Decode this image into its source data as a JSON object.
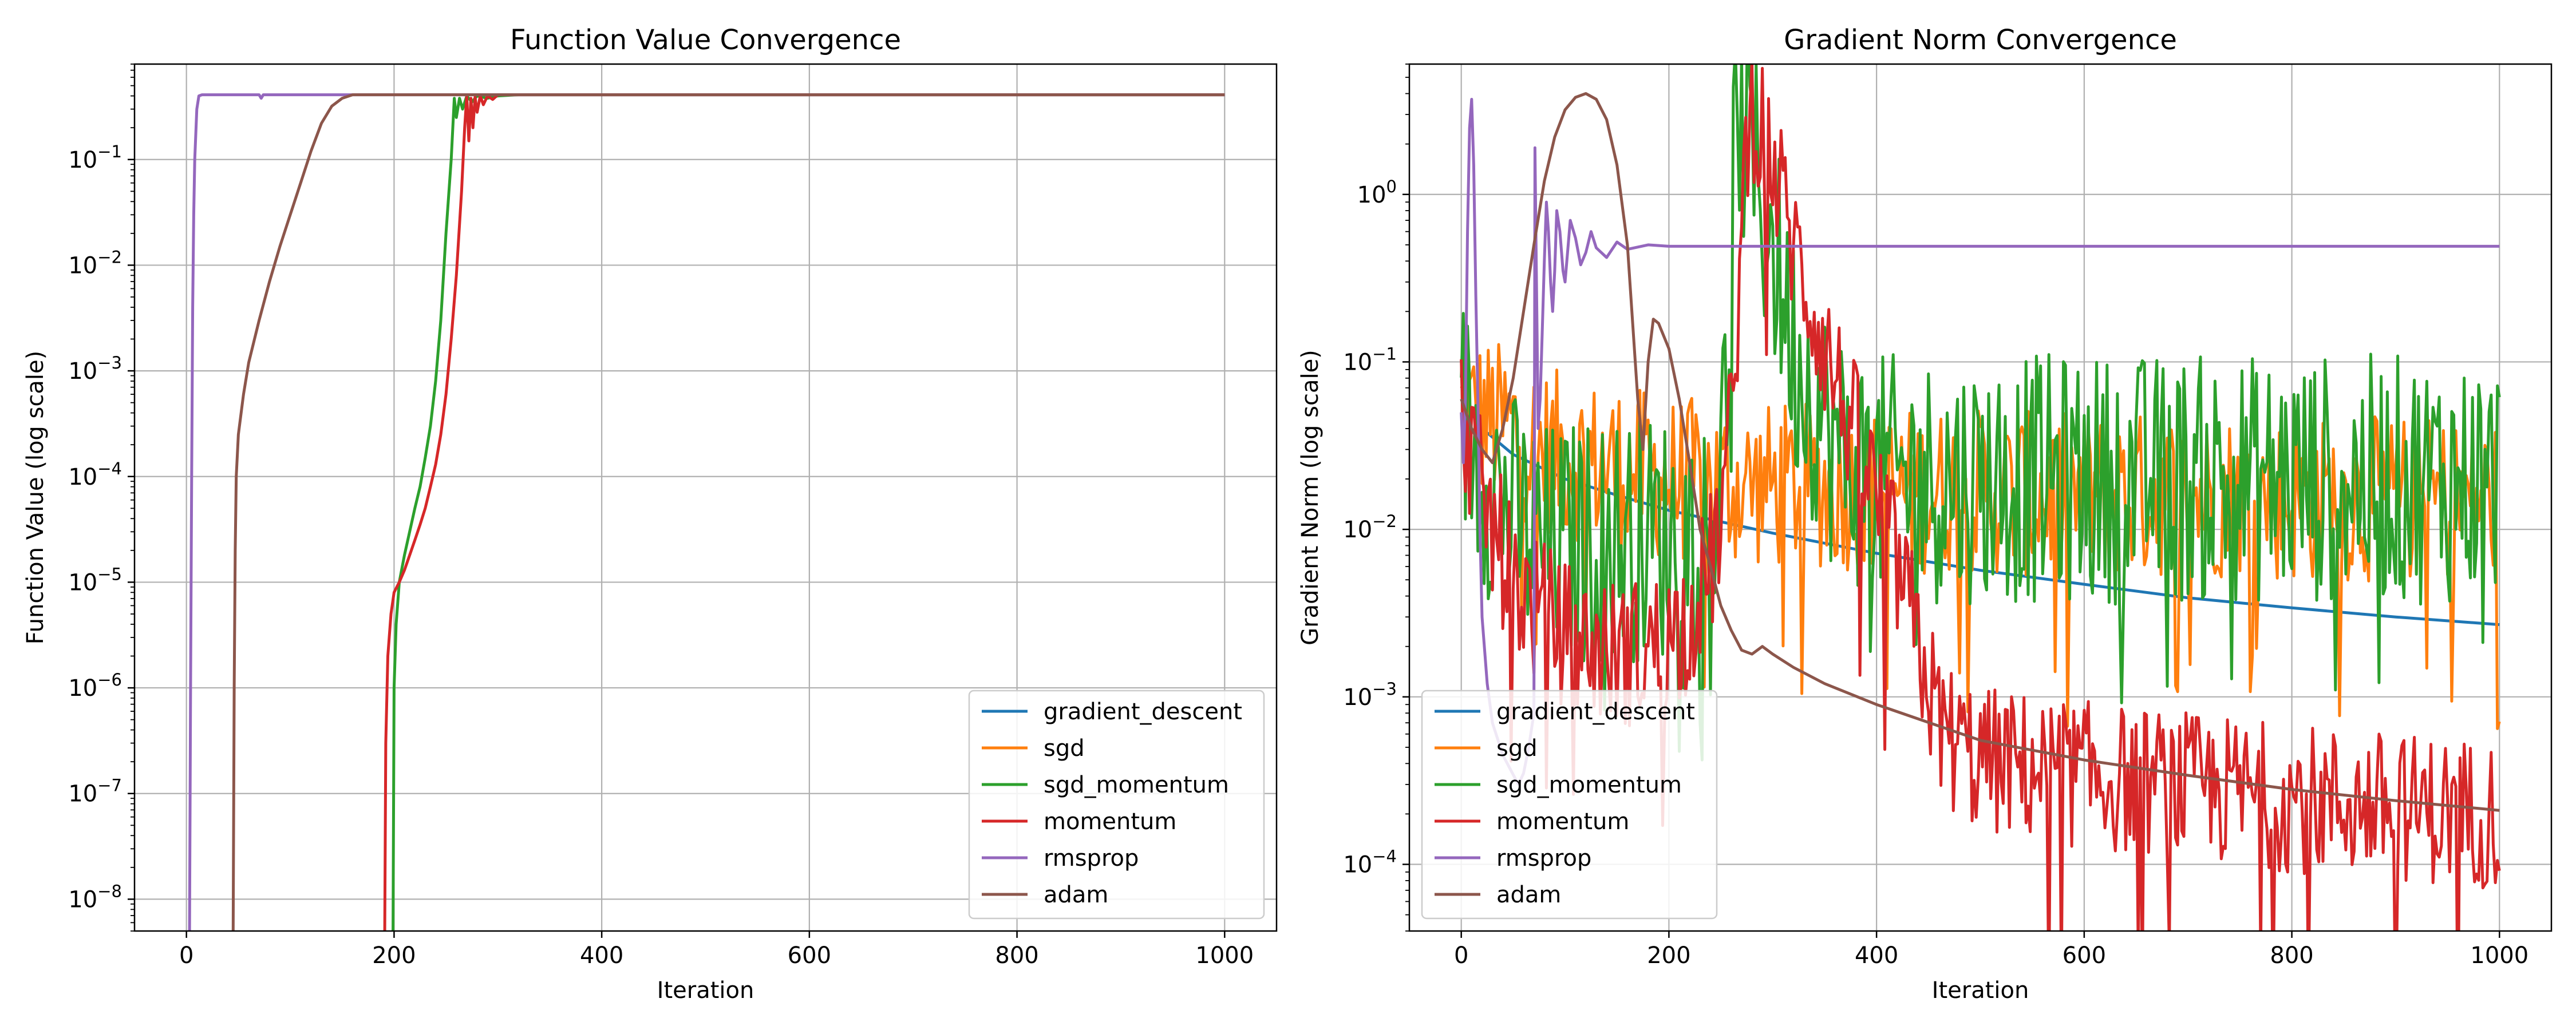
{
  "chart_data": [
    {
      "type": "line",
      "title": "Function Value Convergence",
      "xlabel": "Iteration",
      "ylabel": "Function Value (log scale)",
      "yscale": "log",
      "xlim": [
        -50,
        1050
      ],
      "ylim": [
        5e-09,
        0.8
      ],
      "xticks": [
        0,
        200,
        400,
        600,
        800,
        1000
      ],
      "xtick_labels": [
        "0",
        "200",
        "400",
        "600",
        "800",
        "1000"
      ],
      "yticks": [
        1e-08,
        1e-07,
        1e-06,
        1e-05,
        0.0001,
        0.001,
        0.01,
        0.1
      ],
      "ytick_labels": [
        {
          "base": "10",
          "exp": "−8"
        },
        {
          "base": "10",
          "exp": "−7"
        },
        {
          "base": "10",
          "exp": "−6"
        },
        {
          "base": "10",
          "exp": "−5"
        },
        {
          "base": "10",
          "exp": "−4"
        },
        {
          "base": "10",
          "exp": "−3"
        },
        {
          "base": "10",
          "exp": "−2"
        },
        {
          "base": "10",
          "exp": "−1"
        }
      ],
      "grid": true,
      "legend_position": "lower-right",
      "series": [
        {
          "name": "gradient_descent",
          "color": "#1f77b4",
          "x": [],
          "y": []
        },
        {
          "name": "sgd",
          "color": "#ff7f0e",
          "x": [],
          "y": []
        },
        {
          "name": "sgd_momentum",
          "color": "#2ca02c",
          "x": [
            199,
            200,
            202,
            205,
            210,
            215,
            220,
            225,
            230,
            235,
            240,
            245,
            250,
            255,
            258,
            260,
            263,
            266,
            270,
            275,
            280,
            290,
            300,
            320,
            1000
          ],
          "y": [
            5e-09,
            1e-06,
            4e-06,
            1e-05,
            1.8e-05,
            3e-05,
            5e-05,
            8e-05,
            0.00015,
            0.0003,
            0.0008,
            0.003,
            0.02,
            0.1,
            0.38,
            0.25,
            0.38,
            0.3,
            0.4,
            0.35,
            0.4,
            0.38,
            0.4,
            0.41,
            0.41
          ]
        },
        {
          "name": "momentum",
          "color": "#d62728",
          "x": [
            191,
            192,
            194,
            197,
            200,
            205,
            210,
            215,
            220,
            225,
            230,
            235,
            240,
            245,
            250,
            255,
            260,
            265,
            268,
            270,
            272,
            274,
            276,
            278,
            280,
            283,
            286,
            290,
            295,
            300,
            310,
            1000
          ],
          "y": [
            5e-09,
            3e-07,
            2e-06,
            5e-06,
            8e-06,
            1e-05,
            1.3e-05,
            1.8e-05,
            2.5e-05,
            3.5e-05,
            5e-05,
            8e-05,
            0.00013,
            0.00025,
            0.0006,
            0.002,
            0.008,
            0.05,
            0.2,
            0.4,
            0.15,
            0.38,
            0.2,
            0.39,
            0.28,
            0.4,
            0.33,
            0.4,
            0.37,
            0.41,
            0.41,
            0.41
          ]
        },
        {
          "name": "rmsprop",
          "color": "#9467bd",
          "x": [
            3,
            4,
            5,
            6,
            7,
            8,
            10,
            12,
            15,
            20,
            70,
            72,
            74,
            100,
            150,
            1000
          ],
          "y": [
            5e-09,
            1e-06,
            0.0001,
            0.004,
            0.03,
            0.1,
            0.3,
            0.4,
            0.41,
            0.41,
            0.41,
            0.38,
            0.41,
            0.41,
            0.41,
            0.41
          ]
        },
        {
          "name": "adam",
          "color": "#8c564b",
          "x": [
            45,
            46,
            47,
            48,
            50,
            55,
            60,
            70,
            80,
            90,
            100,
            110,
            120,
            130,
            140,
            150,
            160,
            1000
          ],
          "y": [
            5e-09,
            1e-06,
            2e-05,
            0.0001,
            0.00025,
            0.0006,
            0.0012,
            0.003,
            0.007,
            0.015,
            0.03,
            0.06,
            0.12,
            0.22,
            0.32,
            0.38,
            0.41,
            0.41
          ]
        }
      ]
    },
    {
      "type": "line",
      "title": "Gradient Norm Convergence",
      "xlabel": "Iteration",
      "ylabel": "Gradient Norm (log scale)",
      "yscale": "log",
      "xlim": [
        -50,
        1050
      ],
      "ylim": [
        4e-05,
        6
      ],
      "xticks": [
        0,
        200,
        400,
        600,
        800,
        1000
      ],
      "xtick_labels": [
        "0",
        "200",
        "400",
        "600",
        "800",
        "1000"
      ],
      "yticks": [
        0.0001,
        0.001,
        0.01,
        0.1,
        1
      ],
      "ytick_labels": [
        {
          "base": "10",
          "exp": "−4"
        },
        {
          "base": "10",
          "exp": "−3"
        },
        {
          "base": "10",
          "exp": "−2"
        },
        {
          "base": "10",
          "exp": "−1"
        },
        {
          "base": "10",
          "exp": "0"
        }
      ],
      "grid": true,
      "legend_position": "lower-left",
      "series": [
        {
          "name": "gradient_descent",
          "color": "#1f77b4",
          "x": [
            0,
            20,
            50,
            100,
            150,
            200,
            300,
            400,
            500,
            600,
            700,
            800,
            900,
            1000
          ],
          "y": [
            0.06,
            0.04,
            0.028,
            0.02,
            0.016,
            0.013,
            0.0095,
            0.0072,
            0.0057,
            0.0047,
            0.0039,
            0.0034,
            0.003,
            0.0027
          ]
        },
        {
          "name": "sgd",
          "color": "#ff7f0e",
          "x": [
            0,
            25,
            50,
            75,
            100,
            125,
            150,
            175,
            200,
            250,
            300,
            350,
            400,
            450,
            500,
            550,
            600,
            650,
            700,
            750,
            800,
            850,
            900,
            950,
            1000
          ],
          "y": [
            0.05,
            0.045,
            0.04,
            0.03,
            0.028,
            0.025,
            0.024,
            0.022,
            0.02,
            0.019,
            0.018,
            0.018,
            0.017,
            0.017,
            0.017,
            0.016,
            0.016,
            0.016,
            0.016,
            0.016,
            0.015,
            0.015,
            0.015,
            0.015,
            0.015
          ],
          "noise_amplitude": 0.5
        },
        {
          "name": "sgd_momentum",
          "color": "#2ca02c",
          "x": [
            0,
            20,
            40,
            60,
            80,
            100,
            150,
            200,
            240,
            255,
            262,
            266,
            270,
            275,
            280,
            285,
            290,
            300,
            310,
            320,
            340,
            360,
            400,
            450,
            500,
            600,
            700,
            800,
            900,
            1000
          ],
          "y": [
            0.05,
            0.025,
            0.015,
            0.01,
            0.008,
            0.008,
            0.009,
            0.009,
            0.01,
            0.05,
            1.0,
            3.5,
            2.0,
            3.0,
            1.5,
            1.2,
            0.8,
            0.5,
            0.25,
            0.12,
            0.06,
            0.03,
            0.02,
            0.02,
            0.02,
            0.02,
            0.02,
            0.02,
            0.02,
            0.02
          ],
          "noise_amplitude": 0.75
        },
        {
          "name": "momentum",
          "color": "#d62728",
          "x": [
            0,
            10,
            20,
            40,
            60,
            80,
            100,
            120,
            150,
            180,
            200,
            220,
            240,
            250,
            260,
            265,
            270,
            275,
            280,
            285,
            290,
            300,
            320,
            340,
            360,
            380,
            400,
            420,
            440,
            460,
            480,
            500,
            600,
            700,
            800,
            900,
            1000
          ],
          "y": [
            0.05,
            0.03,
            0.015,
            0.007,
            0.004,
            0.003,
            0.0024,
            0.002,
            0.0018,
            0.0019,
            0.0022,
            0.003,
            0.006,
            0.012,
            0.04,
            0.15,
            0.6,
            2.0,
            3.5,
            3.0,
            2.5,
            1.5,
            0.5,
            0.2,
            0.08,
            0.035,
            0.015,
            0.006,
            0.002,
            0.0007,
            0.0005,
            0.00042,
            0.00034,
            0.00029,
            0.00025,
            0.00022,
            0.0002
          ],
          "noise_amplitude": 0.45
        },
        {
          "name": "rmsprop",
          "color": "#9467bd",
          "x": [
            0,
            2,
            4,
            6,
            8,
            10,
            12,
            14,
            16,
            18,
            20,
            25,
            30,
            40,
            55,
            60,
            65,
            70,
            71,
            72,
            73,
            74,
            76,
            78,
            80,
            82,
            84,
            86,
            88,
            90,
            92,
            95,
            98,
            100,
            105,
            110,
            115,
            120,
            125,
            130,
            140,
            150,
            160,
            180,
            200,
            300,
            400,
            500,
            600,
            700,
            800,
            900,
            1000
          ],
          "y": [
            0.05,
            0.025,
            0.06,
            0.6,
            2.5,
            3.7,
            1.5,
            0.25,
            0.06,
            0.01,
            0.003,
            0.0012,
            0.0007,
            0.00045,
            0.0003,
            0.00035,
            0.0005,
            0.0008,
            1.9,
            0.5,
            0.15,
            0.04,
            0.06,
            0.15,
            0.4,
            0.9,
            0.6,
            0.3,
            0.2,
            0.35,
            0.8,
            0.6,
            0.35,
            0.3,
            0.7,
            0.55,
            0.38,
            0.45,
            0.6,
            0.48,
            0.42,
            0.52,
            0.47,
            0.5,
            0.49,
            0.49,
            0.49,
            0.49,
            0.49,
            0.49,
            0.49,
            0.49,
            0.49
          ]
        },
        {
          "name": "adam",
          "color": "#8c564b",
          "x": [
            0,
            10,
            20,
            30,
            40,
            50,
            60,
            70,
            80,
            90,
            100,
            110,
            120,
            130,
            140,
            150,
            160,
            170,
            175,
            180,
            185,
            190,
            200,
            210,
            220,
            230,
            240,
            250,
            260,
            270,
            280,
            290,
            300,
            320,
            350,
            400,
            500,
            600,
            700,
            800,
            900,
            1000
          ],
          "y": [
            0.06,
            0.04,
            0.03,
            0.025,
            0.04,
            0.08,
            0.2,
            0.5,
            1.2,
            2.2,
            3.2,
            3.8,
            4.0,
            3.7,
            2.8,
            1.5,
            0.5,
            0.06,
            0.03,
            0.1,
            0.18,
            0.17,
            0.12,
            0.06,
            0.025,
            0.01,
            0.006,
            0.0035,
            0.0025,
            0.0019,
            0.0018,
            0.002,
            0.0018,
            0.0015,
            0.0012,
            0.0009,
            0.00055,
            0.00042,
            0.00034,
            0.00028,
            0.00024,
            0.00021
          ]
        }
      ]
    }
  ]
}
